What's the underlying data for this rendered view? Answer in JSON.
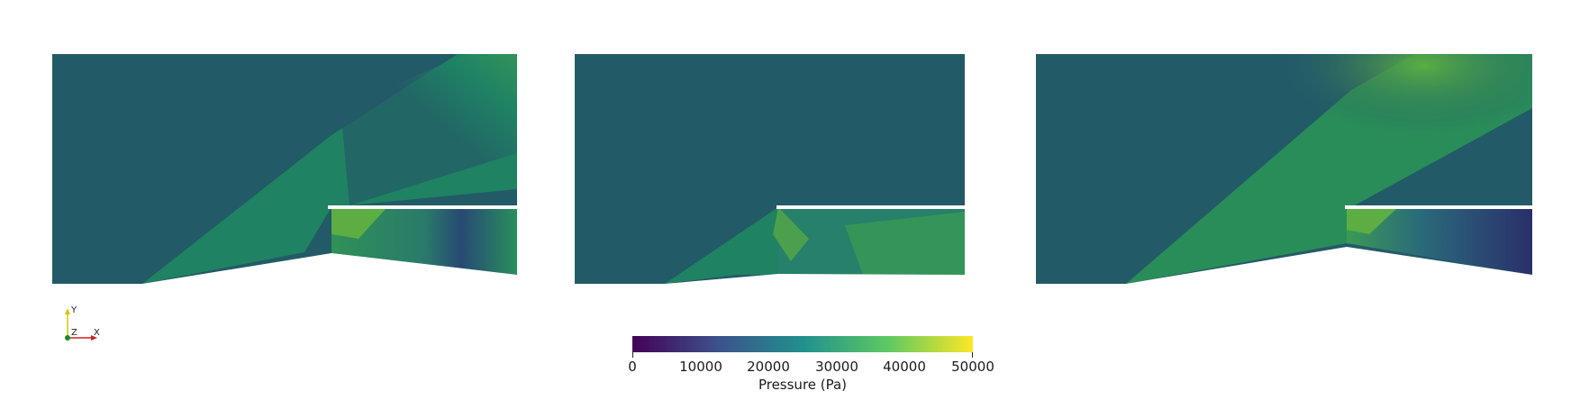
{
  "orientation_axes": {
    "y_label": "Y",
    "z_label": "Z",
    "x_label": "X"
  },
  "colorbar": {
    "title": "Pressure (Pa)",
    "ticks": [
      "0",
      "10000",
      "20000",
      "30000",
      "40000",
      "50000"
    ],
    "range": [
      0,
      50000
    ],
    "colormap": "viridis",
    "colors": [
      "#440154",
      "#3b528b",
      "#21908d",
      "#5dc963",
      "#fde725"
    ]
  },
  "field_colors": {
    "freestream": "#235a67",
    "shock": "#1f8a62",
    "compressed": "#3a9a55",
    "high": "#5cae42",
    "expanded": "#2a3a6b"
  }
}
